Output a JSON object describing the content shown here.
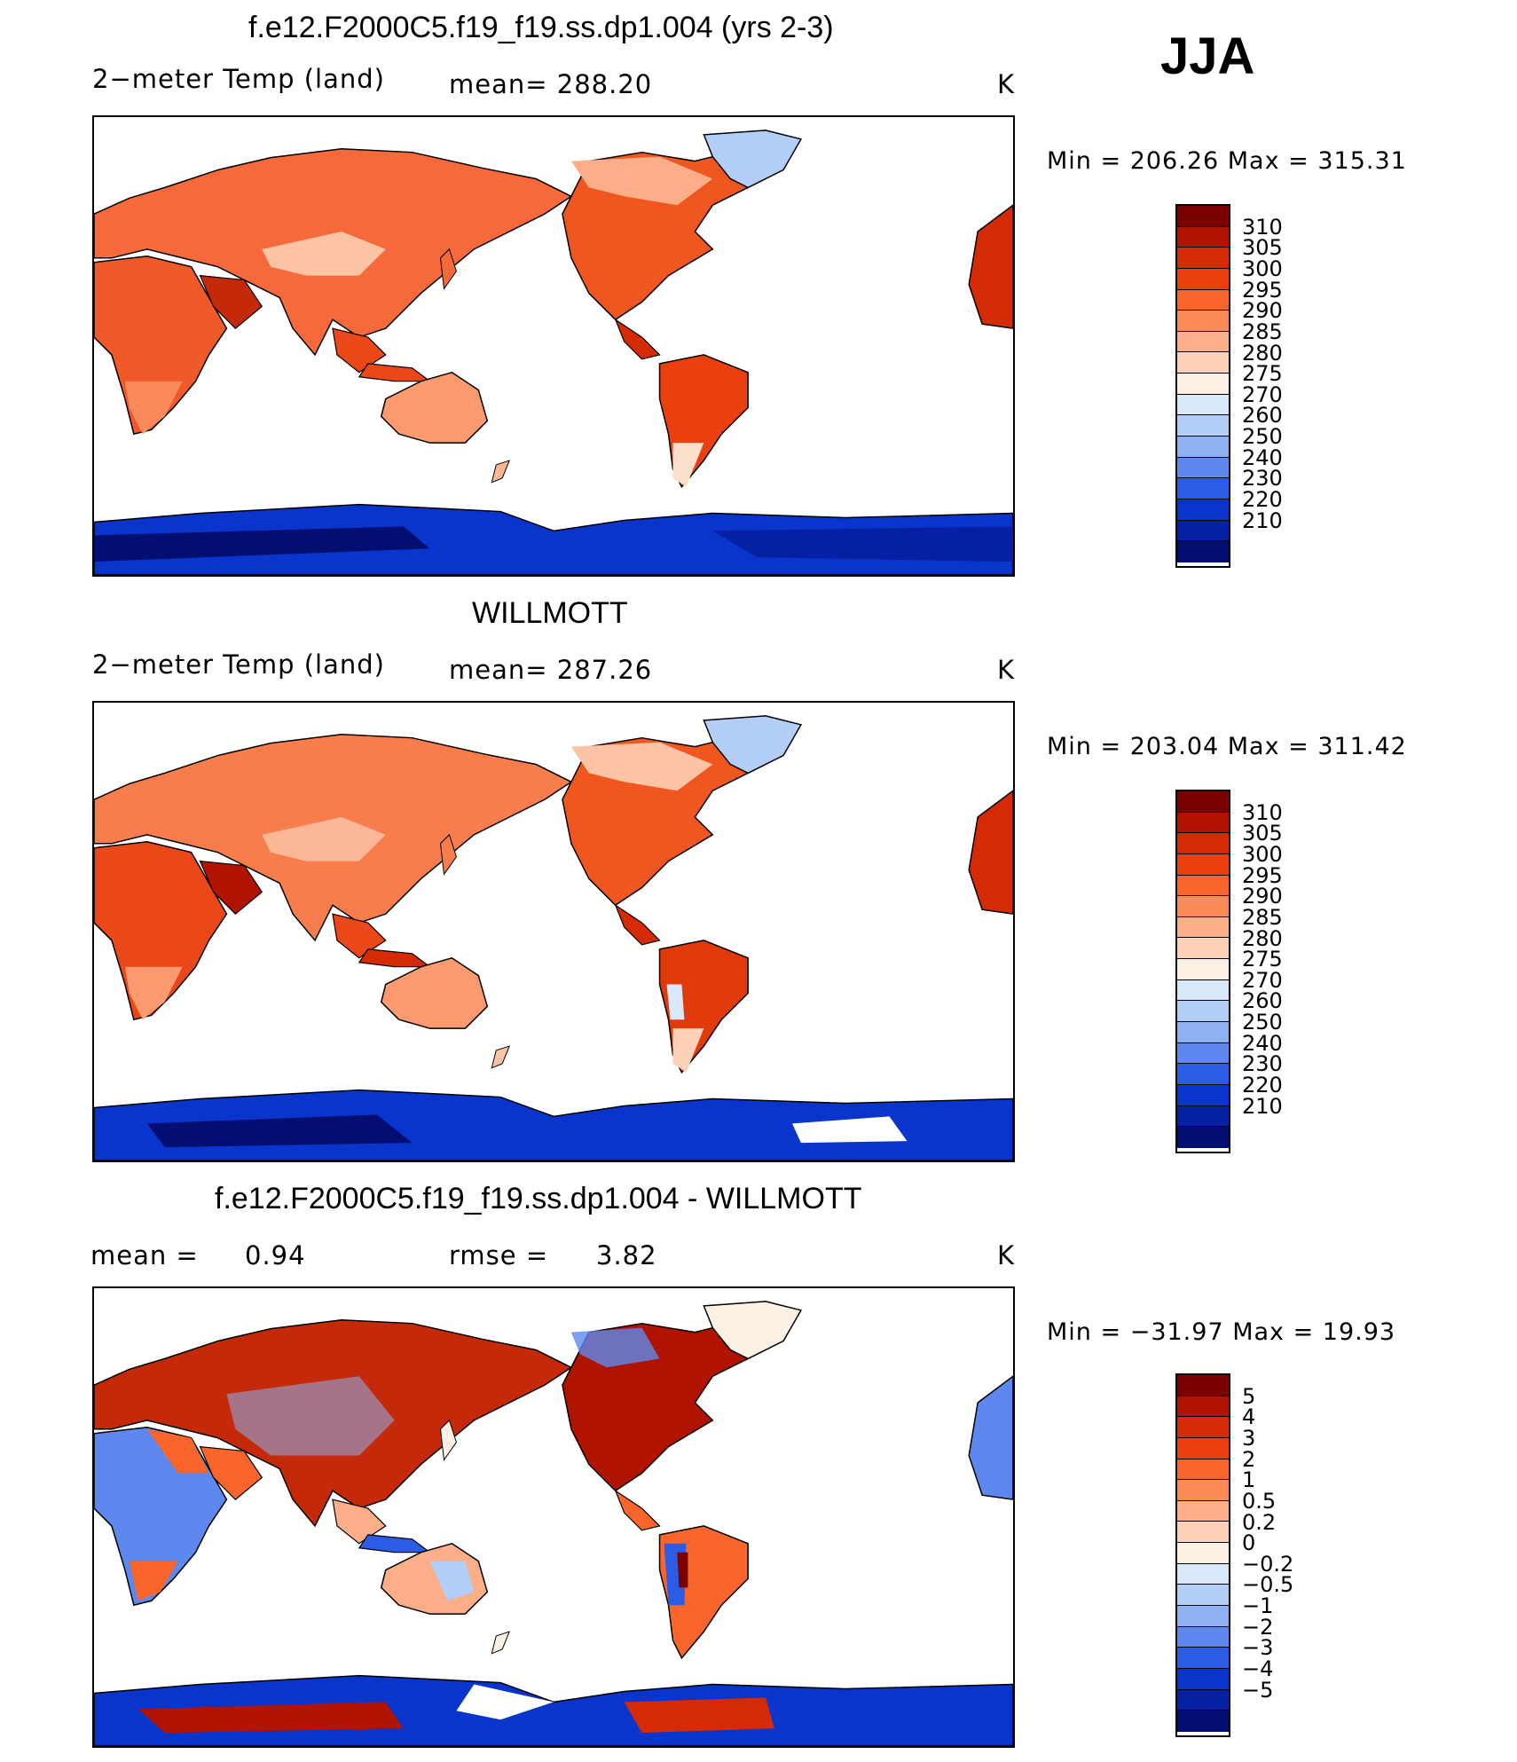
{
  "season": "JJA",
  "units": "K",
  "colors": {
    "ocean": "#ffffff",
    "coast": "#000000"
  },
  "panels": [
    {
      "id": "model",
      "title": "f.e12.F2000C5.f19_f19.ss.dp1.004 (yrs 2-3)",
      "variable": "2−meter Temp (land)",
      "stat1": "mean=  288.20",
      "stat2": "",
      "units": "K",
      "range_text": "Min  =  206.26  Max  =  315.31",
      "colorbar": {
        "labels": [
          "310",
          "305",
          "300",
          "295",
          "290",
          "285",
          "280",
          "275",
          "270",
          "260",
          "250",
          "240",
          "230",
          "220",
          "210"
        ],
        "colors": [
          "#7a0000",
          "#b01400",
          "#d42a05",
          "#ea4010",
          "#f9652a",
          "#fb8b57",
          "#fcae88",
          "#fdd1b7",
          "#fbf0e4",
          "#d9e9fb",
          "#b4cff7",
          "#8db1f3",
          "#5d88ee",
          "#2c5be5",
          "#0a35cc",
          "#0520a0",
          "#030f70"
        ]
      },
      "chart_data": {
        "type": "map",
        "projection": "cylindrical equidistant, Pacific-centered",
        "field": "2-meter air temperature over land",
        "mean": 288.2,
        "min": 206.26,
        "max": 315.31,
        "units": "K",
        "contour_levels": [
          210,
          220,
          230,
          240,
          250,
          260,
          270,
          275,
          280,
          285,
          290,
          295,
          300,
          305,
          310
        ]
      }
    },
    {
      "id": "obs",
      "title": "WILLMOTT",
      "variable": "2−meter Temp (land)",
      "stat1": "mean=  287.26",
      "stat2": "",
      "units": "K",
      "range_text": "Min  =  203.04  Max  =  311.42",
      "colorbar": {
        "labels": [
          "310",
          "305",
          "300",
          "295",
          "290",
          "285",
          "280",
          "275",
          "270",
          "260",
          "250",
          "240",
          "230",
          "220",
          "210"
        ],
        "colors": [
          "#7a0000",
          "#b01400",
          "#d42a05",
          "#ea4010",
          "#f9652a",
          "#fb8b57",
          "#fcae88",
          "#fdd1b7",
          "#fbf0e4",
          "#d9e9fb",
          "#b4cff7",
          "#8db1f3",
          "#5d88ee",
          "#2c5be5",
          "#0a35cc",
          "#0520a0",
          "#030f70"
        ]
      },
      "chart_data": {
        "type": "map",
        "projection": "cylindrical equidistant, Pacific-centered",
        "field": "2-meter air temperature over land (observations)",
        "mean": 287.26,
        "min": 203.04,
        "max": 311.42,
        "units": "K",
        "contour_levels": [
          210,
          220,
          230,
          240,
          250,
          260,
          270,
          275,
          280,
          285,
          290,
          295,
          300,
          305,
          310
        ]
      }
    },
    {
      "id": "diff",
      "title": "f.e12.F2000C5.f19_f19.ss.dp1.004 - WILLMOTT",
      "variable": "mean  =",
      "stat1": "0.94",
      "stat2": "rmse  =",
      "stat3": "3.82",
      "units": "K",
      "range_text": "Min  =  −31.97  Max  =    19.93",
      "colorbar": {
        "labels": [
          "5",
          "4",
          "3",
          "2",
          "1",
          "0.5",
          "0.2",
          "0",
          "−0.2",
          "−0.5",
          "−1",
          "−2",
          "−3",
          "−4",
          "−5"
        ],
        "colors": [
          "#7a0000",
          "#b01400",
          "#d42a05",
          "#ea4010",
          "#f9652a",
          "#fb8b57",
          "#fcae88",
          "#fdd1b7",
          "#fbf0e4",
          "#d9e9fb",
          "#b4cff7",
          "#8db1f3",
          "#5d88ee",
          "#2c5be5",
          "#0a35cc",
          "#0520a0",
          "#030f70"
        ]
      },
      "chart_data": {
        "type": "map",
        "projection": "cylindrical equidistant, Pacific-centered",
        "field": "model minus observations, 2-meter temperature",
        "mean": 0.94,
        "rmse": 3.82,
        "min": -31.97,
        "max": 19.93,
        "units": "K",
        "contour_levels": [
          -5,
          -4,
          -3,
          -2,
          -1,
          -0.5,
          -0.2,
          0,
          0.2,
          0.5,
          1,
          2,
          3,
          4,
          5
        ]
      }
    }
  ]
}
